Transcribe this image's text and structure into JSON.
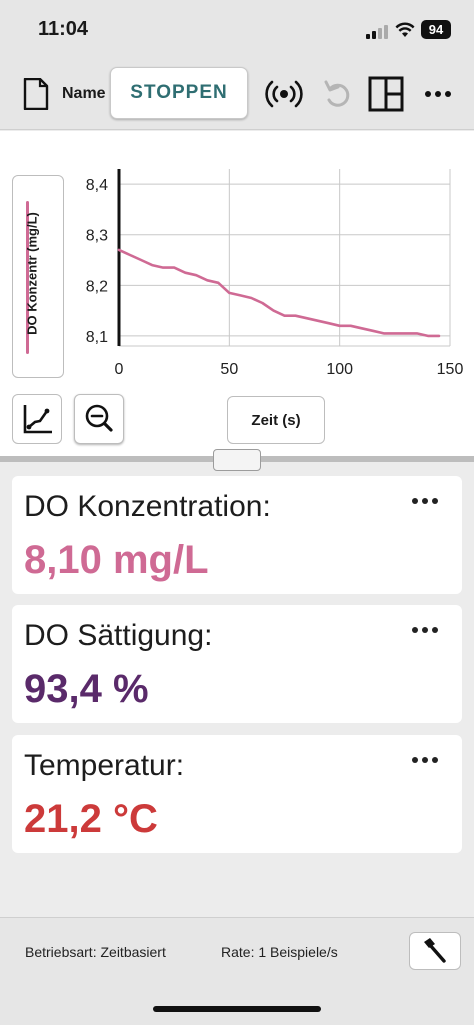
{
  "status_bar": {
    "time": "11:04",
    "battery": "94"
  },
  "toolbar": {
    "name_label": "Name",
    "stop_label": "STOPPEN"
  },
  "graph": {
    "y_axis_label": "DO Konzentr (mg/L)",
    "x_axis_label": "Zeit (s)",
    "series_color": "#cf6a94"
  },
  "chart_data": {
    "type": "line",
    "ylabel": "DO Konzentr (mg/L)",
    "xlabel": "Zeit (s)",
    "xlim": [
      0,
      150
    ],
    "ylim": [
      8.08,
      8.43
    ],
    "x_ticks": [
      "0",
      "50",
      "100",
      "150"
    ],
    "y_ticks": [
      "8,1",
      "8,2",
      "8,3",
      "8,4"
    ],
    "x_tick_values": [
      0,
      50,
      100,
      150
    ],
    "y_tick_values": [
      8.1,
      8.2,
      8.3,
      8.4
    ],
    "grid": true,
    "series": [
      {
        "color": "#cf6a94",
        "x": [
          0,
          5,
          10,
          15,
          20,
          25,
          30,
          35,
          40,
          45,
          50,
          55,
          60,
          65,
          70,
          75,
          80,
          85,
          90,
          95,
          100,
          105,
          110,
          115,
          120,
          125,
          130,
          135,
          140,
          145
        ],
        "y": [
          8.27,
          8.26,
          8.25,
          8.24,
          8.235,
          8.235,
          8.225,
          8.22,
          8.21,
          8.205,
          8.185,
          8.18,
          8.175,
          8.165,
          8.15,
          8.14,
          8.14,
          8.135,
          8.13,
          8.125,
          8.12,
          8.12,
          8.115,
          8.11,
          8.105,
          8.105,
          8.105,
          8.105,
          8.1,
          8.1
        ]
      }
    ]
  },
  "meters": [
    {
      "label": "DO Konzentration:",
      "value": "8,10 mg/L",
      "color": "#cf6a94"
    },
    {
      "label": "DO Sättigung:",
      "value": "93,4 %",
      "color": "#5a2a6a"
    },
    {
      "label": "Temperatur:",
      "value": "21,2 °C",
      "color": "#cc3a3a"
    }
  ],
  "footer": {
    "mode": "Betriebsart: Zeitbasiert",
    "rate": "Rate: 1 Beispiele/s"
  }
}
